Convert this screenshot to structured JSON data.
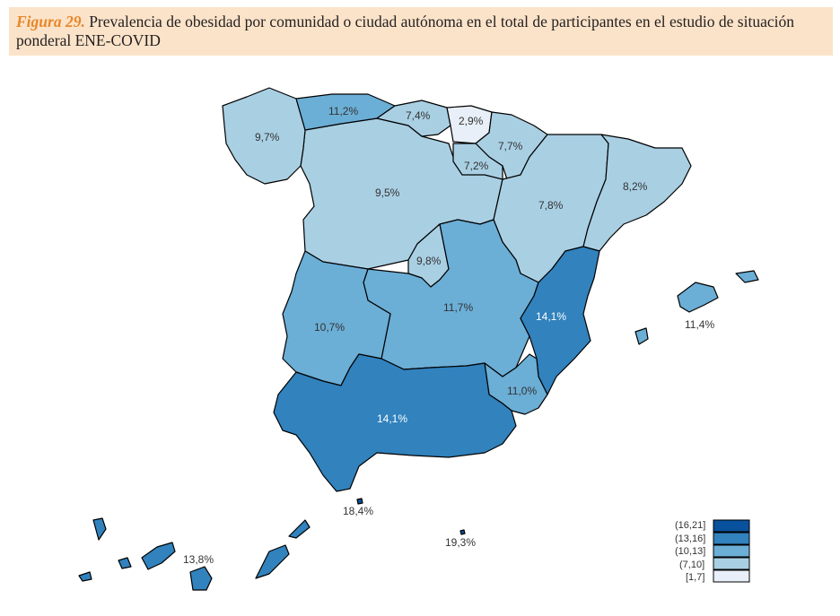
{
  "caption": {
    "figure_label": "Figura 29.",
    "text": "Prevalencia de obesidad por comunidad o ciudad autónoma en el total de participantes en el estudio de situación ponderal ENE-COVID"
  },
  "colors": {
    "c16_21": "#08519c",
    "c13_16": "#3182bd",
    "c10_13": "#6baed6",
    "c7_10": "#a9cfe3",
    "c1_7": "#e8eff8"
  },
  "regions": [
    {
      "id": "galicia",
      "value": "9,7%"
    },
    {
      "id": "asturias",
      "value": "11,2%"
    },
    {
      "id": "cantabria",
      "value": "7,4%"
    },
    {
      "id": "pais-vasco",
      "value": "2,9%"
    },
    {
      "id": "navarra",
      "value": "7,7%"
    },
    {
      "id": "la-rioja",
      "value": "7,2%"
    },
    {
      "id": "castilla-leon",
      "value": "9,5%"
    },
    {
      "id": "aragon",
      "value": "7,8%"
    },
    {
      "id": "cataluna",
      "value": "8,2%"
    },
    {
      "id": "madrid",
      "value": "9,8%"
    },
    {
      "id": "extremadura",
      "value": "10,7%"
    },
    {
      "id": "castilla-la-mancha",
      "value": "11,7%"
    },
    {
      "id": "valencia",
      "value": "14,1%"
    },
    {
      "id": "murcia",
      "value": "11,0%"
    },
    {
      "id": "andalucia",
      "value": "14,1%"
    },
    {
      "id": "baleares",
      "value": "11,4%"
    },
    {
      "id": "canarias",
      "value": "13,8%"
    },
    {
      "id": "ceuta",
      "value": "18,4%"
    },
    {
      "id": "melilla",
      "value": "19,3%"
    }
  ],
  "legend": [
    {
      "label": "(16,21]"
    },
    {
      "label": "(13,16]"
    },
    {
      "label": "(10,13]"
    },
    {
      "label": "(7,10]"
    },
    {
      "label": "[1,7]"
    }
  ]
}
